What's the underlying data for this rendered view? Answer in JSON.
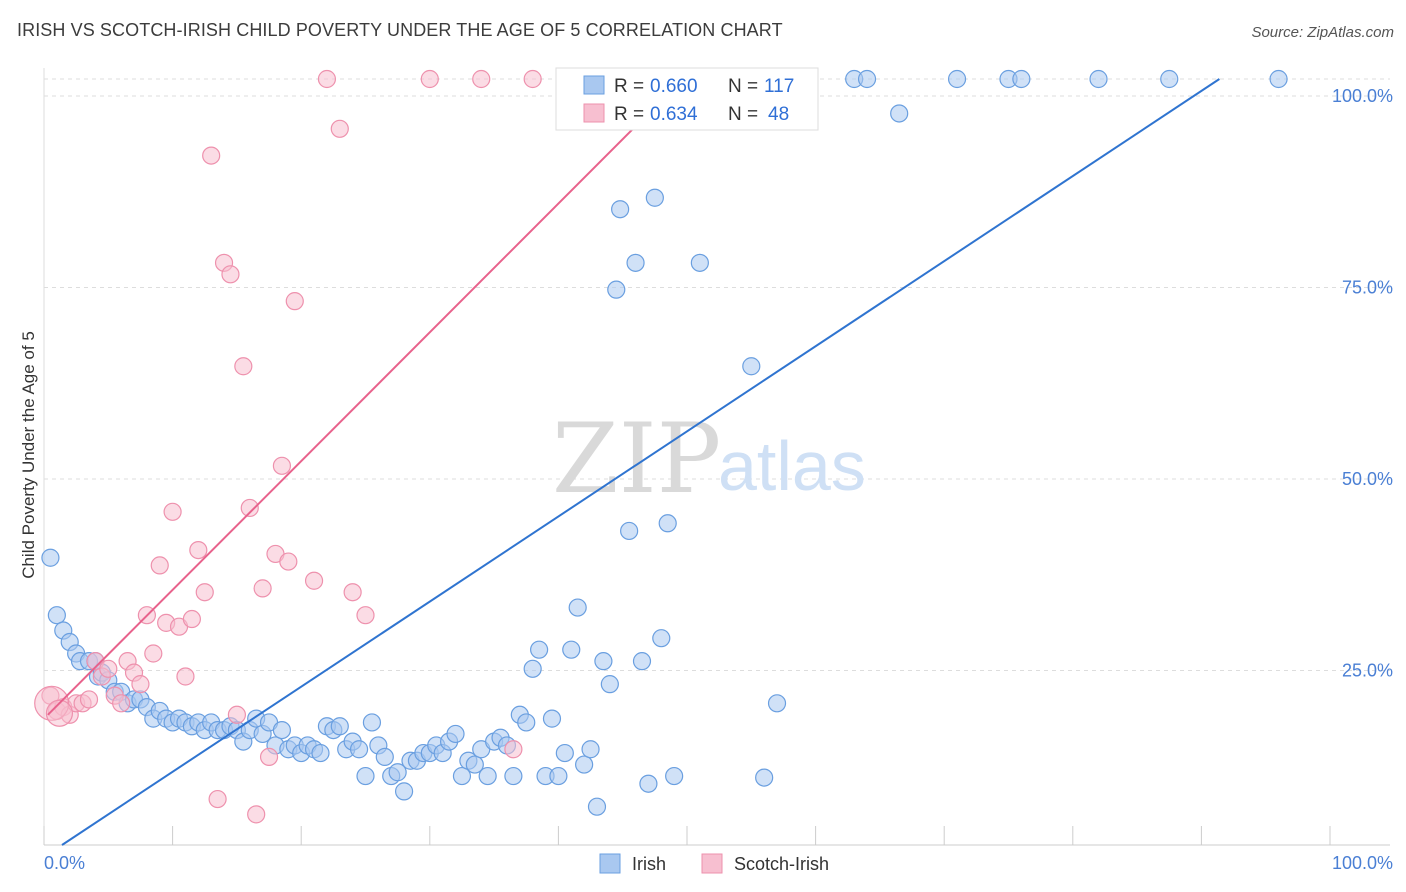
{
  "title": "IRISH VS SCOTCH-IRISH CHILD POVERTY UNDER THE AGE OF 5 CORRELATION CHART",
  "source": "Source: ZipAtlas.com",
  "watermark": {
    "zip": "ZIP",
    "atlas": "atlas"
  },
  "colors": {
    "irish_fill": "#a9c8f0",
    "irish_stroke": "#6a9fe0",
    "irish_line": "#2f74d0",
    "scotch_fill": "#f7bfd0",
    "scotch_stroke": "#ee91ad",
    "scotch_line": "#e8628c",
    "grid": "#dddddd",
    "axis_text": "#4a7fd4"
  },
  "legend": {
    "rows": [
      {
        "r_label": "R = ",
        "r_value": "0.660",
        "n_label": "N = ",
        "n_value": "117"
      },
      {
        "r_label": "R = ",
        "r_value": "0.634",
        "n_label": "N = ",
        "n_value": "48"
      }
    ]
  },
  "bottom_legend": {
    "items": [
      "Irish",
      "Scotch-Irish"
    ]
  },
  "chart_data": {
    "type": "scatter",
    "ylabel": "Child Poverty Under the Age of 5",
    "xlabel": "",
    "xlim": [
      0,
      100
    ],
    "ylim": [
      0,
      100
    ],
    "x_tick_labels": [
      "0.0%",
      "100.0%"
    ],
    "y_tick_labels": [
      "100.0%",
      "75.0%",
      "50.0%",
      "25.0%"
    ],
    "y_tick_values": [
      100,
      75,
      50,
      25
    ],
    "grid": true,
    "series": [
      {
        "name": "Irish",
        "r": 0.66,
        "n": 117,
        "trendline": {
          "x": [
            1.4,
            91.4
          ],
          "y": [
            0,
            100
          ]
        },
        "points": [
          [
            0.5,
            37.5
          ],
          [
            1,
            30
          ],
          [
            1.5,
            28
          ],
          [
            2,
            26.5
          ],
          [
            2.5,
            25
          ],
          [
            2.8,
            24
          ],
          [
            3.5,
            24
          ],
          [
            4,
            24
          ],
          [
            4.2,
            22
          ],
          [
            4.5,
            22.5
          ],
          [
            5,
            21.5
          ],
          [
            5.5,
            20
          ],
          [
            6,
            20
          ],
          [
            6.5,
            18.5
          ],
          [
            7,
            19
          ],
          [
            7.5,
            19
          ],
          [
            8,
            18
          ],
          [
            8.5,
            16.5
          ],
          [
            9,
            17.5
          ],
          [
            9.5,
            16.5
          ],
          [
            10,
            16
          ],
          [
            10.5,
            16.5
          ],
          [
            11,
            16
          ],
          [
            11.5,
            15.5
          ],
          [
            12,
            16
          ],
          [
            12.5,
            15
          ],
          [
            13,
            16
          ],
          [
            13.5,
            15
          ],
          [
            14,
            15
          ],
          [
            14.5,
            15.5
          ],
          [
            15,
            15
          ],
          [
            15.5,
            13.5
          ],
          [
            16,
            15
          ],
          [
            16.5,
            16.5
          ],
          [
            17,
            14.5
          ],
          [
            17.5,
            16
          ],
          [
            18,
            13
          ],
          [
            18.5,
            15
          ],
          [
            19,
            12.5
          ],
          [
            19.5,
            13
          ],
          [
            20,
            12
          ],
          [
            20.5,
            13
          ],
          [
            21,
            12.5
          ],
          [
            21.5,
            12
          ],
          [
            22,
            15.5
          ],
          [
            22.5,
            15
          ],
          [
            23,
            15.5
          ],
          [
            23.5,
            12.5
          ],
          [
            24,
            13.5
          ],
          [
            24.5,
            12.5
          ],
          [
            25,
            9
          ],
          [
            25.5,
            16
          ],
          [
            26,
            13
          ],
          [
            26.5,
            11.5
          ],
          [
            27,
            9
          ],
          [
            27.5,
            9.5
          ],
          [
            28,
            7
          ],
          [
            28.5,
            11
          ],
          [
            29,
            11
          ],
          [
            29.5,
            12
          ],
          [
            30,
            12
          ],
          [
            30.5,
            13
          ],
          [
            31,
            12
          ],
          [
            31.5,
            13.5
          ],
          [
            32,
            14.5
          ],
          [
            32.5,
            9
          ],
          [
            33,
            11
          ],
          [
            33.5,
            10.5
          ],
          [
            34,
            12.5
          ],
          [
            34.5,
            9
          ],
          [
            35,
            13.5
          ],
          [
            35.5,
            14
          ],
          [
            36,
            13
          ],
          [
            36.5,
            9
          ],
          [
            37,
            17
          ],
          [
            37.5,
            16
          ],
          [
            38,
            23
          ],
          [
            38.5,
            25.5
          ],
          [
            39,
            9
          ],
          [
            39.5,
            16.5
          ],
          [
            40,
            9
          ],
          [
            40.5,
            12
          ],
          [
            41,
            25.5
          ],
          [
            41.5,
            31
          ],
          [
            42,
            10.5
          ],
          [
            42.5,
            12.5
          ],
          [
            43,
            5
          ],
          [
            43.5,
            24
          ],
          [
            44,
            21
          ],
          [
            44.5,
            72.5
          ],
          [
            44.8,
            83
          ],
          [
            45,
            100
          ],
          [
            45.5,
            41
          ],
          [
            46,
            76
          ],
          [
            46.5,
            24
          ],
          [
            47,
            8
          ],
          [
            47.5,
            84.5
          ],
          [
            48,
            27
          ],
          [
            48.5,
            42
          ],
          [
            49,
            9
          ],
          [
            50.5,
            100
          ],
          [
            51,
            76
          ],
          [
            51.5,
            100
          ],
          [
            54,
            100
          ],
          [
            55,
            62.5
          ],
          [
            56,
            8.8
          ],
          [
            57,
            18.5
          ],
          [
            59,
            100
          ],
          [
            63,
            100
          ],
          [
            64,
            100
          ],
          [
            66.5,
            95.5
          ],
          [
            71,
            100
          ],
          [
            75,
            100
          ],
          [
            76,
            100
          ],
          [
            82,
            100
          ],
          [
            87.5,
            100
          ],
          [
            96,
            100
          ]
        ]
      },
      {
        "name": "Scotch-Irish",
        "r": 0.634,
        "n": 48,
        "trendline": {
          "x": [
            0.3,
            46.4
          ],
          "y": [
            17,
            94.5
          ]
        },
        "points": [
          [
            0.5,
            19.5
          ],
          [
            1,
            17.5
          ],
          [
            1.5,
            18
          ],
          [
            2,
            17
          ],
          [
            2.5,
            18.5
          ],
          [
            3,
            18.5
          ],
          [
            3.5,
            19
          ],
          [
            4,
            24
          ],
          [
            4.5,
            22
          ],
          [
            5,
            23
          ],
          [
            5.5,
            19.5
          ],
          [
            6,
            18.5
          ],
          [
            6.5,
            24
          ],
          [
            7,
            22.5
          ],
          [
            7.5,
            21
          ],
          [
            8,
            30
          ],
          [
            8.5,
            25
          ],
          [
            9,
            36.5
          ],
          [
            9.5,
            29
          ],
          [
            10,
            43.5
          ],
          [
            10.5,
            28.5
          ],
          [
            11,
            22
          ],
          [
            11.5,
            29.5
          ],
          [
            12,
            38.5
          ],
          [
            12.5,
            33
          ],
          [
            13,
            90
          ],
          [
            13.5,
            6
          ],
          [
            14,
            76
          ],
          [
            14.5,
            74.5
          ],
          [
            15,
            17
          ],
          [
            15.5,
            62.5
          ],
          [
            16,
            44
          ],
          [
            16.5,
            4
          ],
          [
            17,
            33.5
          ],
          [
            17.5,
            11.5
          ],
          [
            18,
            38
          ],
          [
            18.5,
            49.5
          ],
          [
            19,
            37
          ],
          [
            19.5,
            71
          ],
          [
            21,
            34.5
          ],
          [
            22,
            100
          ],
          [
            23,
            93.5
          ],
          [
            24,
            33
          ],
          [
            25,
            30
          ],
          [
            30,
            100
          ],
          [
            34,
            100
          ],
          [
            36.5,
            12.5
          ],
          [
            38,
            100
          ]
        ]
      }
    ]
  }
}
